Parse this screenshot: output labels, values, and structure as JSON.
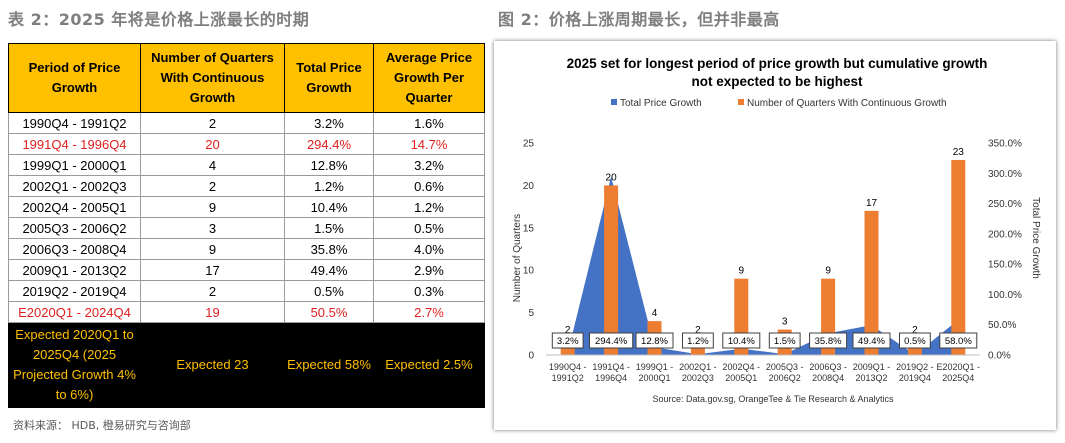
{
  "left_panel": {
    "heading": "表 2：2025 年将是价格上涨最长的时期",
    "columns": [
      "Period of Price Growth",
      "Number of Quarters With Continuous Growth",
      "Total Price Growth",
      "Average Price Growth Per Quarter"
    ],
    "rows": [
      {
        "period": "1990Q4 - 1991Q2",
        "quarters": "2",
        "total": "3.2%",
        "avg": "1.6%",
        "highlight": false
      },
      {
        "period": "1991Q4 - 1996Q4",
        "quarters": "20",
        "total": "294.4%",
        "avg": "14.7%",
        "highlight": true
      },
      {
        "period": "1999Q1 - 2000Q1",
        "quarters": "4",
        "total": "12.8%",
        "avg": "3.2%",
        "highlight": false
      },
      {
        "period": "2002Q1 - 2002Q3",
        "quarters": "2",
        "total": "1.2%",
        "avg": "0.6%",
        "highlight": false
      },
      {
        "period": "2002Q4 - 2005Q1",
        "quarters": "9",
        "total": "10.4%",
        "avg": "1.2%",
        "highlight": false
      },
      {
        "period": "2005Q3 - 2006Q2",
        "quarters": "3",
        "total": "1.5%",
        "avg": "0.5%",
        "highlight": false
      },
      {
        "period": "2006Q3 - 2008Q4",
        "quarters": "9",
        "total": "35.8%",
        "avg": "4.0%",
        "highlight": false
      },
      {
        "period": "2009Q1 - 2013Q2",
        "quarters": "17",
        "total": "49.4%",
        "avg": "2.9%",
        "highlight": false
      },
      {
        "period": "2019Q2 - 2019Q4",
        "quarters": "2",
        "total": "0.5%",
        "avg": "0.3%",
        "highlight": false
      },
      {
        "period": "E2020Q1 - 2024Q4",
        "quarters": "19",
        "total": "50.5%",
        "avg": "2.7%",
        "highlight": true
      }
    ],
    "expected_row": {
      "period": "Expected 2020Q1 to 2025Q4 (2025 Projected Growth 4% to 6%)",
      "quarters": "Expected 23",
      "total": "Expected 58%",
      "avg": "Expected 2.5%"
    },
    "source": "资料来源： HDB, 橙易研究与咨询部",
    "colors": {
      "header_bg": "#ffc000",
      "highlight_text": "#e02020",
      "expected_bg": "#000000",
      "expected_text": "#ffc000"
    }
  },
  "right_panel": {
    "heading": "图 2：价格上涨周期最长，但并非最高"
  },
  "chart_data": {
    "type": "bar",
    "title": "2025 set for longest period of price growth but cumulative growth not expected to be highest",
    "categories": [
      "1990Q4 - 1991Q2",
      "1991Q4 - 1996Q4",
      "1999Q1 - 2000Q1",
      "2002Q1 - 2002Q3",
      "2002Q4 - 2005Q1",
      "2005Q3 - 2006Q2",
      "2006Q3 - 2008Q4",
      "2009Q1 - 2013Q2",
      "2019Q2 - 2019Q4",
      "E2020Q1 - 2025Q4"
    ],
    "series": [
      {
        "name": "Total Price Growth",
        "kind": "area",
        "axis": "right",
        "color": "#4472c4",
        "values": [
          3.2,
          294.4,
          12.8,
          1.2,
          10.4,
          1.5,
          35.8,
          49.4,
          0.5,
          58.0
        ],
        "labels": [
          "3.2%",
          "294.4%",
          "12.8%",
          "1.2%",
          "10.4%",
          "1.5%",
          "35.8%",
          "49.4%",
          "0.5%",
          "58.0%"
        ]
      },
      {
        "name": "Number of Quarters With Continuous Growth",
        "kind": "bar",
        "axis": "left",
        "color": "#ed7d31",
        "values": [
          2,
          20,
          4,
          2,
          9,
          3,
          9,
          17,
          2,
          23
        ],
        "labels": [
          "2",
          "20",
          "4",
          "2",
          "9",
          "3",
          "9",
          "17",
          "2",
          "23"
        ]
      }
    ],
    "ylabel": "Number of Quarters",
    "y2label": "Total Price Growth",
    "ylim": [
      0,
      25
    ],
    "yticks": [
      "0",
      "5",
      "10",
      "15",
      "20",
      "25"
    ],
    "y2lim": [
      0,
      350
    ],
    "y2ticks": [
      "0.0%",
      "50.0%",
      "100.0%",
      "150.0%",
      "200.0%",
      "250.0%",
      "300.0%",
      "350.0%"
    ],
    "legend": "top-center",
    "grid": false,
    "source": "Source: Data.gov.sg, OrangeTee & Tie Research & Analytics"
  }
}
